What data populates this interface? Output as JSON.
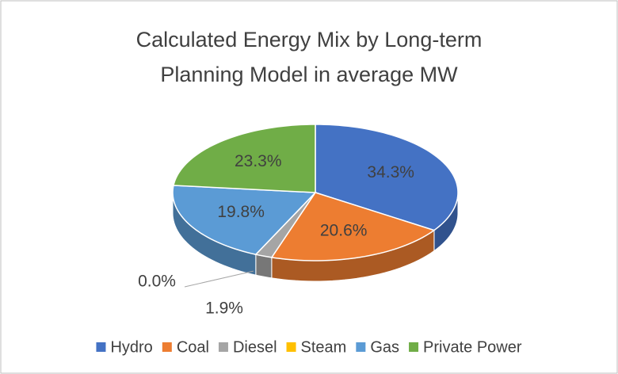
{
  "chart_data": {
    "type": "pie3d",
    "title": "Calculated Energy Mix by Long-term Planning Model in average MW",
    "categories": [
      "Hydro",
      "Coal",
      "Diesel",
      "Steam",
      "Gas",
      "Private Power"
    ],
    "values": [
      34.3,
      20.6,
      1.9,
      0.0,
      19.8,
      23.3
    ],
    "value_labels": [
      "34.3%",
      "20.6%",
      "1.9%",
      "0.0%",
      "19.8%",
      "23.3%"
    ],
    "colors": [
      "#4472c4",
      "#ed7d31",
      "#a5a5a5",
      "#ffc000",
      "#5b9bd5",
      "#70ad47"
    ],
    "legend": "bottom"
  }
}
